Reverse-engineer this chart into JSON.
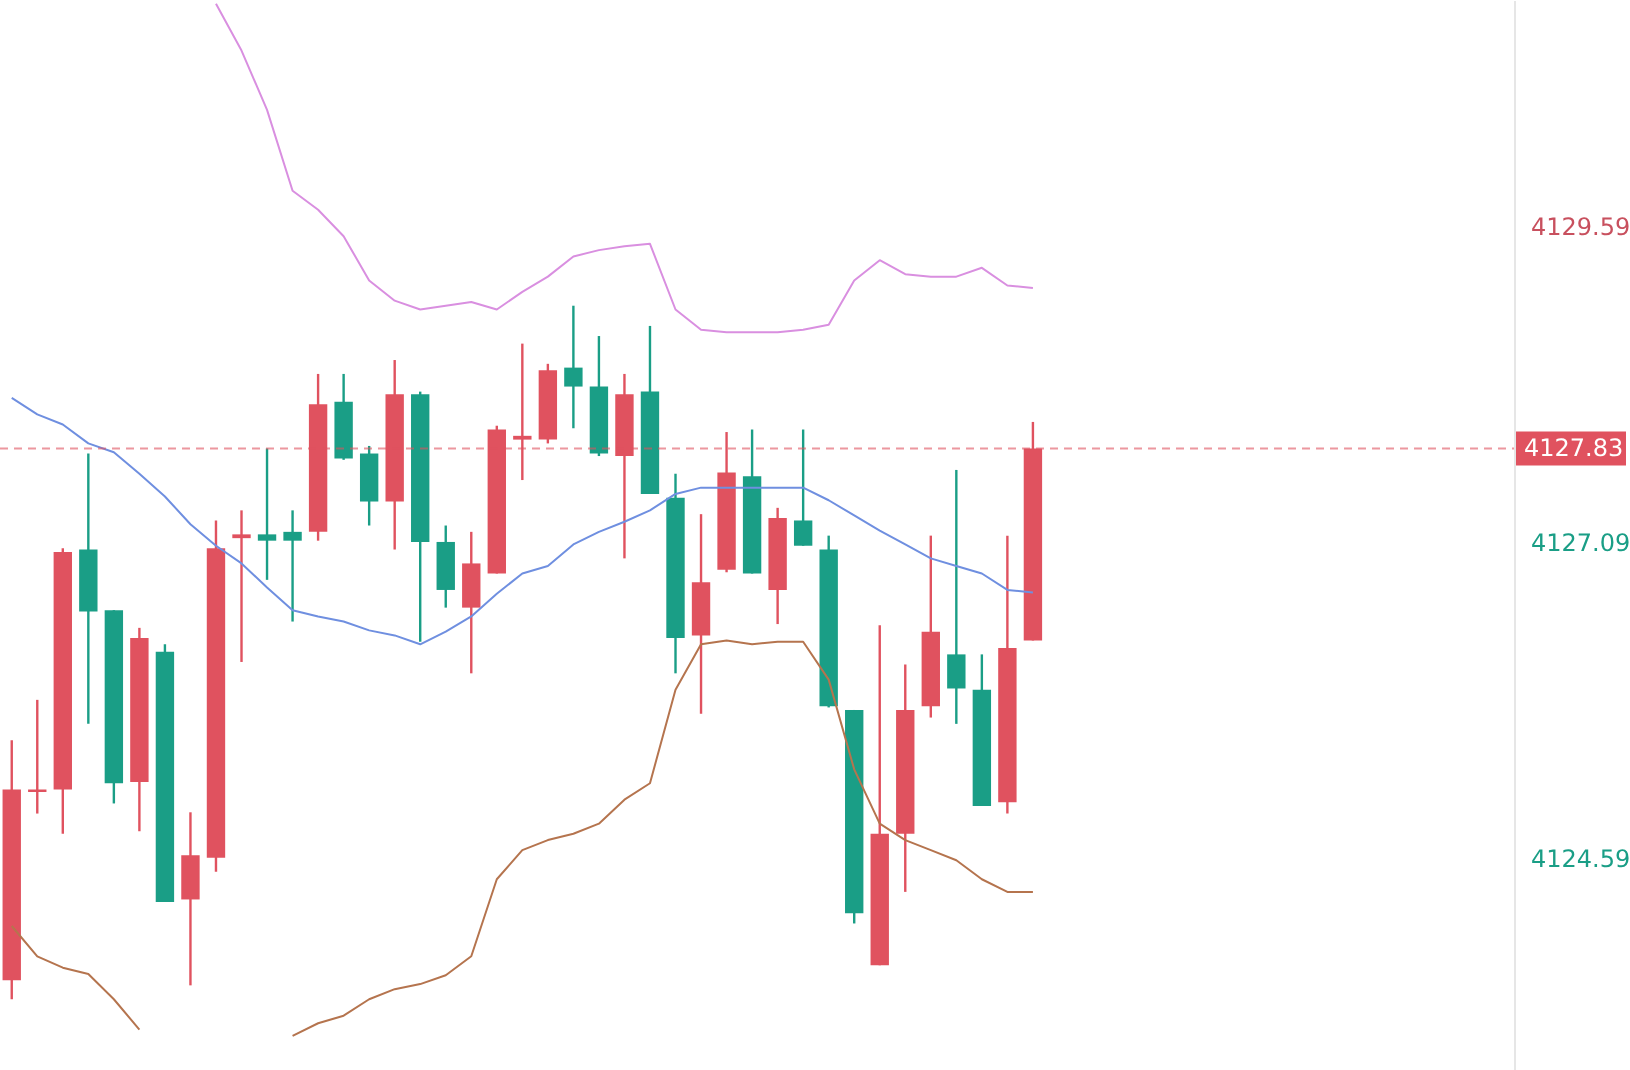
{
  "chart_data": {
    "type": "candlestick",
    "categories": [
      null,
      null,
      null,
      null,
      null,
      null,
      null,
      null,
      null,
      null,
      null,
      null,
      null,
      null,
      null,
      null,
      null,
      null,
      null,
      null,
      null,
      null,
      null,
      null,
      null,
      null,
      null,
      null,
      null,
      null,
      null,
      null,
      null,
      null,
      null,
      null,
      null,
      null,
      null,
      null,
      null
    ],
    "ohlc": [
      [
        4123.62,
        4125.52,
        4123.47,
        4125.13
      ],
      [
        4125.11,
        4125.84,
        4124.94,
        4125.13
      ],
      [
        4125.13,
        4127.04,
        4124.78,
        4127.01
      ],
      [
        4127.03,
        4127.79,
        4125.65,
        4126.54
      ],
      [
        4126.55,
        4126.55,
        4125.02,
        4125.18
      ],
      [
        4125.19,
        4126.41,
        4124.8,
        4126.33
      ],
      [
        4126.22,
        4126.28,
        4124.24,
        4124.24
      ],
      [
        4124.26,
        4124.95,
        4123.58,
        4124.61
      ],
      [
        4124.59,
        4127.26,
        4124.48,
        4127.04
      ],
      [
        4127.12,
        4127.34,
        4126.14,
        4127.15
      ],
      [
        4127.15,
        4127.83,
        4126.79,
        4127.1
      ],
      [
        4127.17,
        4127.34,
        4126.46,
        4127.1
      ],
      [
        4127.17,
        4128.42,
        4127.1,
        4128.18
      ],
      [
        4128.2,
        4128.42,
        4127.74,
        4127.75
      ],
      [
        4127.79,
        4127.85,
        4127.22,
        4127.41
      ],
      [
        4127.41,
        4128.53,
        4127.03,
        4128.26
      ],
      [
        4128.26,
        4128.28,
        4126.3,
        4127.09
      ],
      [
        4127.09,
        4127.22,
        4126.57,
        4126.71
      ],
      [
        4126.57,
        4127.17,
        4126.05,
        4126.92
      ],
      [
        4126.84,
        4128.01,
        4126.84,
        4127.98
      ],
      [
        4127.9,
        4128.66,
        4127.58,
        4127.93
      ],
      [
        4127.9,
        4128.5,
        4127.87,
        4128.45
      ],
      [
        4128.47,
        4128.96,
        4127.99,
        4128.32
      ],
      [
        4128.32,
        4128.72,
        4127.77,
        4127.79
      ],
      [
        4127.77,
        4128.42,
        4126.96,
        4128.26
      ],
      [
        4128.28,
        4128.8,
        4127.47,
        4127.47
      ],
      [
        4127.44,
        4127.63,
        4126.05,
        4126.33
      ],
      [
        4126.35,
        4127.31,
        4125.73,
        4126.77
      ],
      [
        4126.87,
        4127.96,
        4126.85,
        4127.64
      ],
      [
        4127.61,
        4127.98,
        4126.84,
        4126.84
      ],
      [
        4126.71,
        4127.36,
        4126.44,
        4127.28
      ],
      [
        4127.26,
        4127.98,
        4127.06,
        4127.06
      ],
      [
        4127.03,
        4127.14,
        4125.78,
        4125.79
      ],
      [
        4125.76,
        4125.76,
        4124.07,
        4124.15
      ],
      [
        4123.74,
        4126.43,
        4123.74,
        4124.78
      ],
      [
        4124.78,
        4126.12,
        4124.32,
        4125.76
      ],
      [
        4125.79,
        4127.14,
        4125.7,
        4126.38
      ],
      [
        4126.2,
        4127.66,
        4125.65,
        4125.93
      ],
      [
        4125.92,
        4126.2,
        4125.0,
        4125.0
      ],
      [
        4125.03,
        4127.14,
        4124.94,
        4126.25
      ],
      [
        4126.31,
        4128.04,
        4126.31,
        4127.83
      ]
    ],
    "colors": [
      "#e0525f",
      "#e0525f",
      "#e0525f",
      "#1a9e86",
      "#1a9e86",
      "#e0525f",
      "#1a9e86",
      "#e0525f",
      "#e0525f",
      "#e0525f",
      "#1a9e86",
      "#1a9e86",
      "#e0525f",
      "#1a9e86",
      "#1a9e86",
      "#e0525f",
      "#1a9e86",
      "#1a9e86",
      "#e0525f",
      "#e0525f",
      "#e0525f",
      "#e0525f",
      "#1a9e86",
      "#1a9e86",
      "#e0525f",
      "#1a9e86",
      "#1a9e86",
      "#e0525f",
      "#e0525f",
      "#1a9e86",
      "#e0525f",
      "#1a9e86",
      "#1a9e86",
      "#1a9e86",
      "#e0525f",
      "#e0525f",
      "#e0525f",
      "#1a9e86",
      "#1a9e86",
      "#e0525f",
      "#e0525f"
    ],
    "series": [
      {
        "type": "line",
        "color": "#d98fe0",
        "values": [
          null,
          null,
          null,
          null,
          null,
          null,
          null,
          null,
          4131.35,
          4130.98,
          4130.51,
          4129.87,
          4129.72,
          4129.51,
          4129.16,
          4129.0,
          4128.93,
          4128.96,
          4128.99,
          4128.93,
          4129.07,
          4129.19,
          4129.35,
          4129.4,
          4129.43,
          4129.45,
          4128.93,
          4128.77,
          4128.75,
          4128.75,
          4128.75,
          4128.77,
          4128.81,
          4129.16,
          4129.32,
          4129.21,
          4129.19,
          4129.19,
          4129.26,
          4129.12,
          4129.1
        ]
      },
      {
        "type": "line",
        "color": "#6f8fe0",
        "values": [
          4128.23,
          4128.1,
          4128.02,
          4127.87,
          4127.8,
          4127.63,
          4127.45,
          4127.23,
          4127.06,
          4126.92,
          4126.73,
          4126.55,
          4126.5,
          4126.46,
          4126.39,
          4126.35,
          4126.28,
          4126.38,
          4126.5,
          4126.68,
          4126.84,
          4126.9,
          4127.07,
          4127.17,
          4127.25,
          4127.34,
          4127.47,
          4127.52,
          4127.52,
          4127.52,
          4127.52,
          4127.52,
          4127.42,
          4127.3,
          4127.18,
          4127.07,
          4126.96,
          4126.9,
          4126.84,
          4126.71,
          4126.69
        ]
      },
      {
        "type": "line",
        "color": "#b5744e",
        "values": [
          4124.05,
          4123.81,
          4123.72,
          4123.67,
          4123.47,
          4123.23,
          null,
          null,
          null,
          null,
          null,
          4123.18,
          4123.28,
          4123.34,
          4123.47,
          4123.55,
          4123.59,
          4123.66,
          4123.81,
          4124.42,
          4124.65,
          4124.73,
          4124.78,
          4124.86,
          4125.05,
          4125.18,
          4125.92,
          4126.28,
          4126.31,
          4126.28,
          4126.3,
          4126.3,
          4126.0,
          4125.29,
          4124.86,
          4124.73,
          4124.65,
          4124.57,
          4124.42,
          4124.32,
          4124.32
        ]
      }
    ],
    "ylim": [
      4122.91,
      4131.38
    ],
    "yticks": [
      4124.59,
      4127.09,
      4129.59
    ],
    "ref_lines": [
      {
        "axis": "y",
        "value": 4127.83,
        "label": "4127.83",
        "color": "#e0525f",
        "line_style": "dashed"
      }
    ],
    "tick_labels": "y",
    "grid": false
  }
}
